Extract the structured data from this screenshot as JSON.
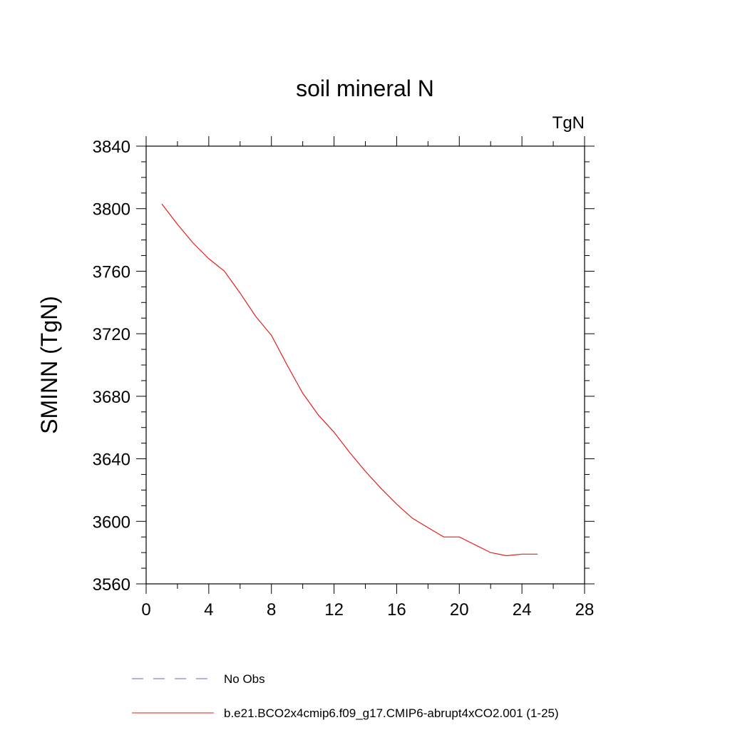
{
  "chart_data": {
    "type": "line",
    "title": "soil mineral N",
    "units_label": "TgN",
    "ylabel": "SMINN  (TgN)",
    "xlabel": "",
    "xlim": [
      0,
      28
    ],
    "ylim": [
      3560,
      3840
    ],
    "x_ticks": [
      0,
      4,
      8,
      12,
      16,
      20,
      24,
      28
    ],
    "y_ticks": [
      3560,
      3600,
      3640,
      3680,
      3720,
      3760,
      3800,
      3840
    ],
    "grid": false,
    "legend_position": "bottom",
    "series": [
      {
        "name": "No Obs",
        "style": "dashed",
        "color": "#6b5fb5",
        "x": [],
        "y": []
      },
      {
        "name": "b.e21.BCO2x4cmip6.f09_g17.CMIP6-abrupt4xCO2.001 (1-25)",
        "style": "solid",
        "color": "#e0201b",
        "x": [
          1,
          2,
          3,
          4,
          5,
          6,
          7,
          8,
          9,
          10,
          11,
          12,
          13,
          14,
          15,
          16,
          17,
          18,
          19,
          20,
          21,
          22,
          23,
          24,
          25
        ],
        "y": [
          3803,
          3790,
          3778,
          3768,
          3760,
          3746,
          3731,
          3719,
          3700,
          3682,
          3668,
          3657,
          3644,
          3632,
          3621,
          3611,
          3602,
          3596,
          3590,
          3590,
          3585,
          3580,
          3578,
          3579,
          3579
        ]
      }
    ]
  }
}
